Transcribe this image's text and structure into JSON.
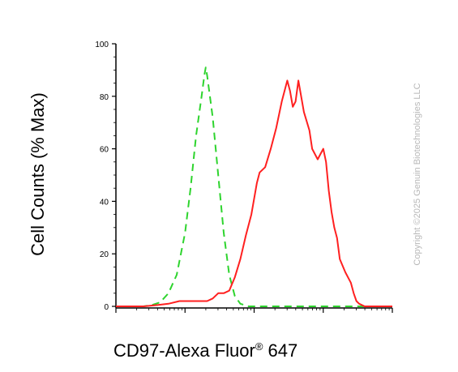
{
  "chart_data": {
    "type": "line",
    "ylabel": "Cell Counts (% Max)",
    "xlabel_main": "CD97-Alexa Fluor",
    "xlabel_reg": "®",
    "xlabel_tail": " 647",
    "ylim": [
      0,
      100
    ],
    "yticks": [
      "0",
      "20",
      "40",
      "60",
      "80",
      "100"
    ],
    "xscale": "log",
    "grid": false,
    "series": [
      {
        "color": "#2ed42e",
        "dashed": true,
        "points": [
          [
            0,
            0
          ],
          [
            0.04,
            0
          ],
          [
            0.1,
            0
          ],
          [
            0.13,
            0.5
          ],
          [
            0.16,
            1.5
          ],
          [
            0.19,
            5
          ],
          [
            0.22,
            12
          ],
          [
            0.25,
            28
          ],
          [
            0.27,
            45
          ],
          [
            0.29,
            65
          ],
          [
            0.31,
            80
          ],
          [
            0.32,
            88
          ],
          [
            0.325,
            91
          ],
          [
            0.33,
            88
          ],
          [
            0.35,
            72
          ],
          [
            0.37,
            50
          ],
          [
            0.39,
            28
          ],
          [
            0.41,
            12
          ],
          [
            0.43,
            4
          ],
          [
            0.45,
            1
          ],
          [
            0.48,
            0
          ],
          [
            0.6,
            0
          ],
          [
            0.8,
            0
          ],
          [
            1,
            0
          ]
        ]
      },
      {
        "color": "#ff2020",
        "dashed": false,
        "points": [
          [
            0,
            0
          ],
          [
            0.04,
            0
          ],
          [
            0.1,
            0
          ],
          [
            0.15,
            0.5
          ],
          [
            0.19,
            1
          ],
          [
            0.23,
            2
          ],
          [
            0.27,
            2
          ],
          [
            0.31,
            2
          ],
          [
            0.33,
            2
          ],
          [
            0.35,
            3
          ],
          [
            0.37,
            5
          ],
          [
            0.39,
            5
          ],
          [
            0.41,
            6
          ],
          [
            0.43,
            11
          ],
          [
            0.45,
            18
          ],
          [
            0.47,
            27
          ],
          [
            0.49,
            35
          ],
          [
            0.51,
            47
          ],
          [
            0.52,
            51
          ],
          [
            0.54,
            53
          ],
          [
            0.56,
            60
          ],
          [
            0.58,
            68
          ],
          [
            0.6,
            78
          ],
          [
            0.62,
            86
          ],
          [
            0.63,
            82
          ],
          [
            0.64,
            76
          ],
          [
            0.65,
            78
          ],
          [
            0.66,
            86
          ],
          [
            0.67,
            80
          ],
          [
            0.68,
            74
          ],
          [
            0.7,
            67
          ],
          [
            0.71,
            60
          ],
          [
            0.72,
            58
          ],
          [
            0.73,
            56
          ],
          [
            0.74,
            58
          ],
          [
            0.75,
            60
          ],
          [
            0.76,
            55
          ],
          [
            0.77,
            44
          ],
          [
            0.78,
            36
          ],
          [
            0.79,
            30
          ],
          [
            0.8,
            26
          ],
          [
            0.81,
            18
          ],
          [
            0.83,
            13
          ],
          [
            0.85,
            9
          ],
          [
            0.86,
            5
          ],
          [
            0.87,
            2
          ],
          [
            0.88,
            1
          ],
          [
            0.9,
            0
          ],
          [
            0.95,
            0
          ],
          [
            1,
            0
          ]
        ]
      }
    ]
  },
  "copyright": "Copyright ©2025 Genuin Biotechnologies LLC"
}
